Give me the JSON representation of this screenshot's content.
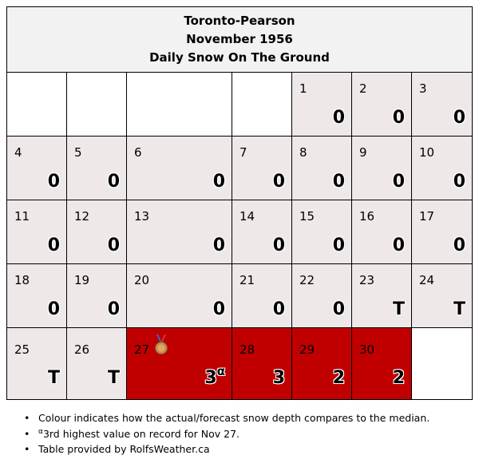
{
  "header": {
    "station": "Toronto-Pearson",
    "period": "November 1956",
    "metric": "Daily Snow On The Ground"
  },
  "colors": {
    "normal": "#eee8e8",
    "above_median": "#c00000",
    "blank": "#ffffff"
  },
  "weeks": [
    [
      {
        "blank": true
      },
      {
        "blank": true
      },
      {
        "blank": true
      },
      {
        "blank": true
      },
      {
        "day": "1",
        "value": "0",
        "status": "normal"
      },
      {
        "day": "2",
        "value": "0",
        "status": "normal"
      },
      {
        "day": "3",
        "value": "0",
        "status": "normal"
      }
    ],
    [
      {
        "day": "4",
        "value": "0",
        "status": "normal"
      },
      {
        "day": "5",
        "value": "0",
        "status": "normal"
      },
      {
        "day": "6",
        "value": "0",
        "status": "normal"
      },
      {
        "day": "7",
        "value": "0",
        "status": "normal"
      },
      {
        "day": "8",
        "value": "0",
        "status": "normal"
      },
      {
        "day": "9",
        "value": "0",
        "status": "normal"
      },
      {
        "day": "10",
        "value": "0",
        "status": "normal"
      }
    ],
    [
      {
        "day": "11",
        "value": "0",
        "status": "normal"
      },
      {
        "day": "12",
        "value": "0",
        "status": "normal"
      },
      {
        "day": "13",
        "value": "0",
        "status": "normal"
      },
      {
        "day": "14",
        "value": "0",
        "status": "normal"
      },
      {
        "day": "15",
        "value": "0",
        "status": "normal"
      },
      {
        "day": "16",
        "value": "0",
        "status": "normal"
      },
      {
        "day": "17",
        "value": "0",
        "status": "normal"
      }
    ],
    [
      {
        "day": "18",
        "value": "0",
        "status": "normal"
      },
      {
        "day": "19",
        "value": "0",
        "status": "normal"
      },
      {
        "day": "20",
        "value": "0",
        "status": "normal"
      },
      {
        "day": "21",
        "value": "0",
        "status": "normal"
      },
      {
        "day": "22",
        "value": "0",
        "status": "normal"
      },
      {
        "day": "23",
        "value": "T",
        "status": "normal"
      },
      {
        "day": "24",
        "value": "T",
        "status": "normal"
      }
    ],
    [
      {
        "day": "25",
        "value": "T",
        "status": "normal"
      },
      {
        "day": "26",
        "value": "T",
        "status": "normal"
      },
      {
        "day": "27",
        "value": "3",
        "note_mark": "α",
        "status": "above",
        "icon": "bronze-medal-icon"
      },
      {
        "day": "28",
        "value": "3",
        "status": "above"
      },
      {
        "day": "29",
        "value": "2",
        "status": "above"
      },
      {
        "day": "30",
        "value": "2",
        "status": "above"
      },
      {
        "blank": true
      }
    ]
  ],
  "notes": {
    "colour_note": "Colour indicates how the actual/forecast snow depth compares to the median.",
    "record_mark": "α",
    "record_note": "3rd highest value on record for Nov 27.",
    "credit": "Table provided by RolfsWeather.ca"
  }
}
